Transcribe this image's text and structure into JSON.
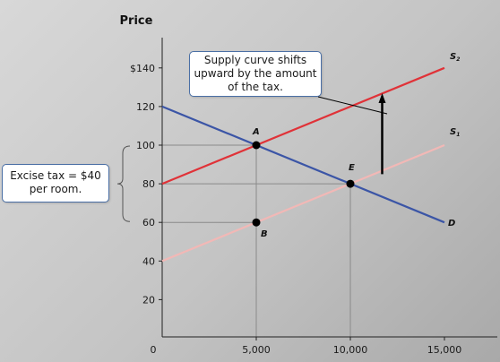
{
  "chart_data": {
    "type": "line",
    "ylabel": "Price",
    "xlabel": "",
    "xlim": [
      0,
      16200
    ],
    "ylim": [
      0,
      145
    ],
    "x_ticks": [
      {
        "value": 0,
        "label": "0"
      },
      {
        "value": 5000,
        "label": "5,000"
      },
      {
        "value": 10000,
        "label": "10,000"
      },
      {
        "value": 15000,
        "label": "15,000"
      }
    ],
    "y_ticks": [
      {
        "value": 20,
        "label": "20"
      },
      {
        "value": 40,
        "label": "40"
      },
      {
        "value": 60,
        "label": "60"
      },
      {
        "value": 80,
        "label": "80"
      },
      {
        "value": 100,
        "label": "100"
      },
      {
        "value": 120,
        "label": "120"
      },
      {
        "value": 140,
        "label": "$140"
      }
    ],
    "series": [
      {
        "name": "D",
        "color": "#3b55a6",
        "points": [
          [
            0,
            120
          ],
          [
            15000,
            60
          ]
        ]
      },
      {
        "name": "S1",
        "color": "#f2b8b6",
        "points": [
          [
            0,
            40
          ],
          [
            15000,
            100
          ]
        ]
      },
      {
        "name": "S2",
        "color": "#e03238",
        "points": [
          [
            0,
            80
          ],
          [
            15000,
            140
          ]
        ]
      }
    ],
    "series_labels": [
      {
        "series": "D",
        "text": "D",
        "at": [
          15000,
          60
        ]
      },
      {
        "series": "S1",
        "text": "S",
        "sub": "1",
        "at": [
          15000,
          100
        ]
      },
      {
        "series": "S2",
        "text": "S",
        "sub": "2",
        "at": [
          15000,
          140
        ]
      }
    ],
    "points": [
      {
        "label": "A",
        "x": 5000,
        "y": 100
      },
      {
        "label": "B",
        "x": 5000,
        "y": 60
      },
      {
        "label": "E",
        "x": 10000,
        "y": 80
      }
    ],
    "guide_lines": [
      {
        "from": [
          0,
          100
        ],
        "to": [
          5000,
          100
        ]
      },
      {
        "from": [
          0,
          80
        ],
        "to": [
          10000,
          80
        ]
      },
      {
        "from": [
          0,
          60
        ],
        "to": [
          5000,
          60
        ]
      },
      {
        "from": [
          5000,
          0
        ],
        "to": [
          5000,
          100
        ]
      },
      {
        "from": [
          10000,
          0
        ],
        "to": [
          10000,
          80
        ]
      }
    ],
    "shift_arrow": {
      "x": 12500,
      "from": 85,
      "to": 126
    },
    "annotations": [
      {
        "id": "shift",
        "text": "Supply curve shifts upward by the amount of the tax."
      },
      {
        "id": "tax",
        "text": "Excise tax = $40 per room."
      }
    ]
  },
  "callouts": {
    "shift_text": "Supply curve shifts upward by the amount of the tax.",
    "tax_text": "Excise tax = $40 per room."
  }
}
